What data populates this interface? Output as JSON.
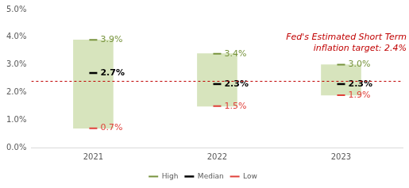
{
  "chart_data": {
    "type": "bar",
    "categories": [
      "2021",
      "2022",
      "2023"
    ],
    "color": "#d7e4bd",
    "series": [
      {
        "name": "High",
        "color": "#77933c",
        "marker": "line",
        "values": [
          3.9,
          3.4,
          3.0
        ],
        "value_labels": [
          "3.9%",
          "3.4%",
          "3.0%"
        ]
      },
      {
        "name": "Median",
        "color": "#000000",
        "marker": "line",
        "values": [
          2.7,
          2.3,
          2.3
        ],
        "value_labels": [
          "2.7%",
          "2.3%",
          "2.3%"
        ]
      },
      {
        "name": "Low",
        "color": "#e0403a",
        "marker": "line",
        "values": [
          0.7,
          1.5,
          1.9
        ],
        "value_labels": [
          "0.7%",
          "1.5%",
          "1.9%"
        ]
      }
    ],
    "ylim": [
      0,
      5
    ],
    "yticks": [
      {
        "value": 0,
        "label": "0.0%"
      },
      {
        "value": 1,
        "label": "1.0%"
      },
      {
        "value": 2,
        "label": "2.0%"
      },
      {
        "value": 3,
        "label": "3.0%"
      },
      {
        "value": 4,
        "label": "4.0%"
      },
      {
        "value": 5,
        "label": "5.0%"
      }
    ],
    "grid": false,
    "legend": "bottom",
    "data_labels": true,
    "annotations": [
      {
        "text": [
          "Fed's Estimated Short Term",
          "inflation target: 2.4%"
        ],
        "value": 2.4,
        "color": "#c00000",
        "line_style": "dashed"
      }
    ]
  }
}
